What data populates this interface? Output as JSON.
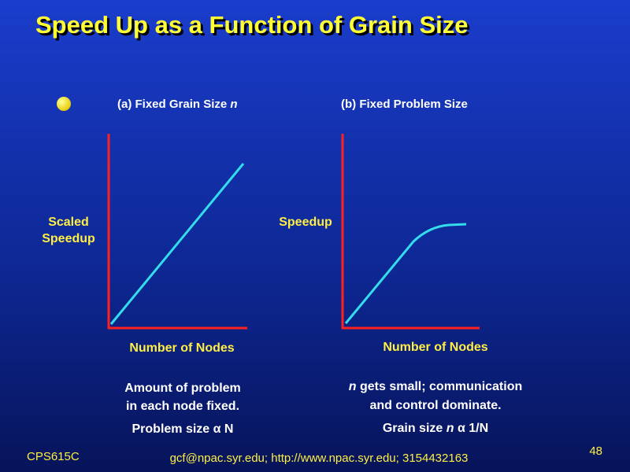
{
  "header": {
    "title": "Speed Up as a Function of Grain Size"
  },
  "panels": [
    {
      "heading": [
        "(a) Fixed Grain Size",
        "n"
      ],
      "y_label": [
        "Scaled",
        "Speedup"
      ],
      "x_label": "Number of Nodes",
      "notes": [
        "Amount of problem",
        "in each node fixed.",
        "Problem size α N"
      ]
    },
    {
      "heading": [
        "(b) Fixed Problem Size"
      ],
      "y_label": [
        "Speedup"
      ],
      "x_label": "Number of Nodes",
      "notes": [
        [
          "n",
          "gets small; communication"
        ],
        "and control dominate.",
        [
          "Grain size",
          "n",
          "α 1/N"
        ]
      ]
    }
  ],
  "footer": {
    "course": "CPS615C",
    "contact": "gcf@npac.syr.edu; http://www.npac.syr.edu; 3154432163",
    "page": "48"
  }
}
